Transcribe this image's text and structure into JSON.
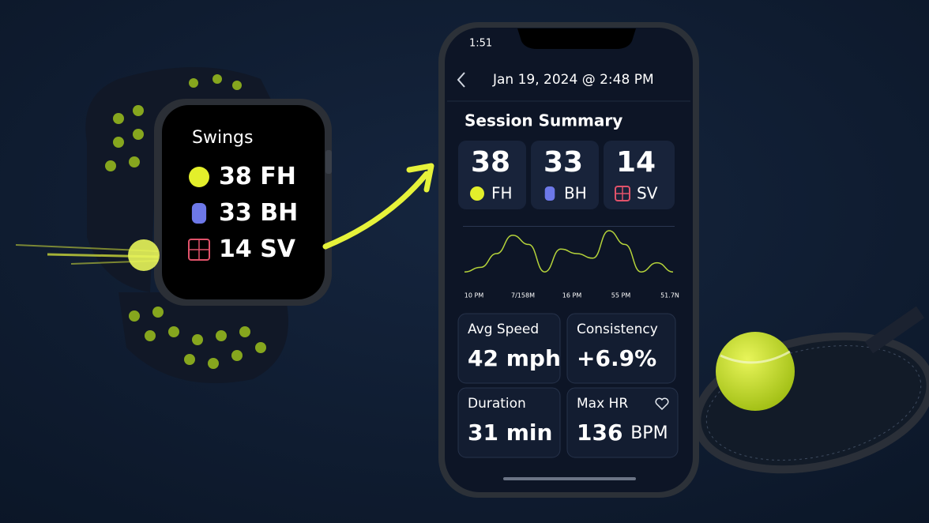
{
  "watch": {
    "title": "Swings",
    "rows": [
      {
        "count": "38",
        "label": "FH"
      },
      {
        "count": "33",
        "label": "BH"
      },
      {
        "count": "14",
        "label": "SV"
      }
    ]
  },
  "phone": {
    "status_time": "1:51",
    "header": "Jan 19, 2024 @ 2:48 PM",
    "section_title": "Session Summary",
    "tiles": [
      {
        "count": "38",
        "label": "FH"
      },
      {
        "count": "33",
        "label": "BH"
      },
      {
        "count": "14",
        "label": "SV"
      }
    ],
    "session_chart": {
      "time_labels": [
        "10 PM",
        "7/158M",
        "16 PM",
        "55 PM",
        "51.7N"
      ],
      "values": [
        1,
        2,
        5,
        9,
        7,
        1,
        6,
        5,
        4,
        10,
        7,
        1,
        3,
        1
      ],
      "ylim": [
        0,
        10
      ],
      "color": "#b5d33a"
    },
    "metrics": [
      {
        "label": "Avg Speed",
        "value": "42",
        "unit": "mph"
      },
      {
        "label": "Consistency",
        "value": "+6.9%",
        "unit": ""
      },
      {
        "label": "Duration",
        "value": "31",
        "unit": "min"
      },
      {
        "label": "Max HR",
        "value": "136",
        "unit": "BPM"
      }
    ]
  }
}
